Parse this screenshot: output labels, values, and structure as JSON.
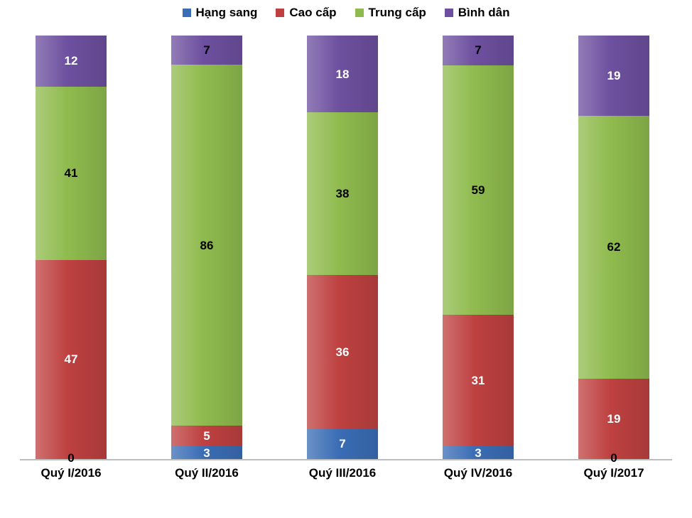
{
  "chart_data": {
    "type": "bar",
    "variant": "stacked-percent-column",
    "title": "",
    "xlabel": "",
    "ylabel": "",
    "background": "#FFFFFF",
    "axis_line_color": "#BDBDBD",
    "legend_position": "top",
    "grid": false,
    "categories": [
      "Quý I/2016",
      "Quý II/2016",
      "Quý III/2016",
      "Quý IV/2016",
      "Quý I/2017"
    ],
    "series": [
      {
        "name": "Hạng sang",
        "color": "#3A6DB5",
        "values": [
          0,
          3,
          7,
          3,
          0
        ],
        "label_colors": [
          "#000000",
          "#FFFFFF",
          "#FFFFFF",
          "#FFFFFF",
          "#000000"
        ]
      },
      {
        "name": "Cao cấp",
        "color": "#BE4140",
        "values": [
          47,
          5,
          36,
          31,
          19
        ],
        "label_colors": [
          "#FFFFFF",
          "#FFFFFF",
          "#FFFFFF",
          "#FFFFFF",
          "#FFFFFF"
        ]
      },
      {
        "name": "Trung cấp",
        "color": "#8FBB4E",
        "values": [
          41,
          86,
          38,
          59,
          62
        ],
        "label_colors": [
          "#000000",
          "#000000",
          "#000000",
          "#000000",
          "#000000"
        ]
      },
      {
        "name": "Bình dân",
        "color": "#6D509F",
        "values": [
          12,
          7,
          18,
          7,
          19
        ],
        "label_colors": [
          "#FFFFFF",
          "#000000",
          "#FFFFFF",
          "#000000",
          "#FFFFFF"
        ]
      }
    ]
  }
}
